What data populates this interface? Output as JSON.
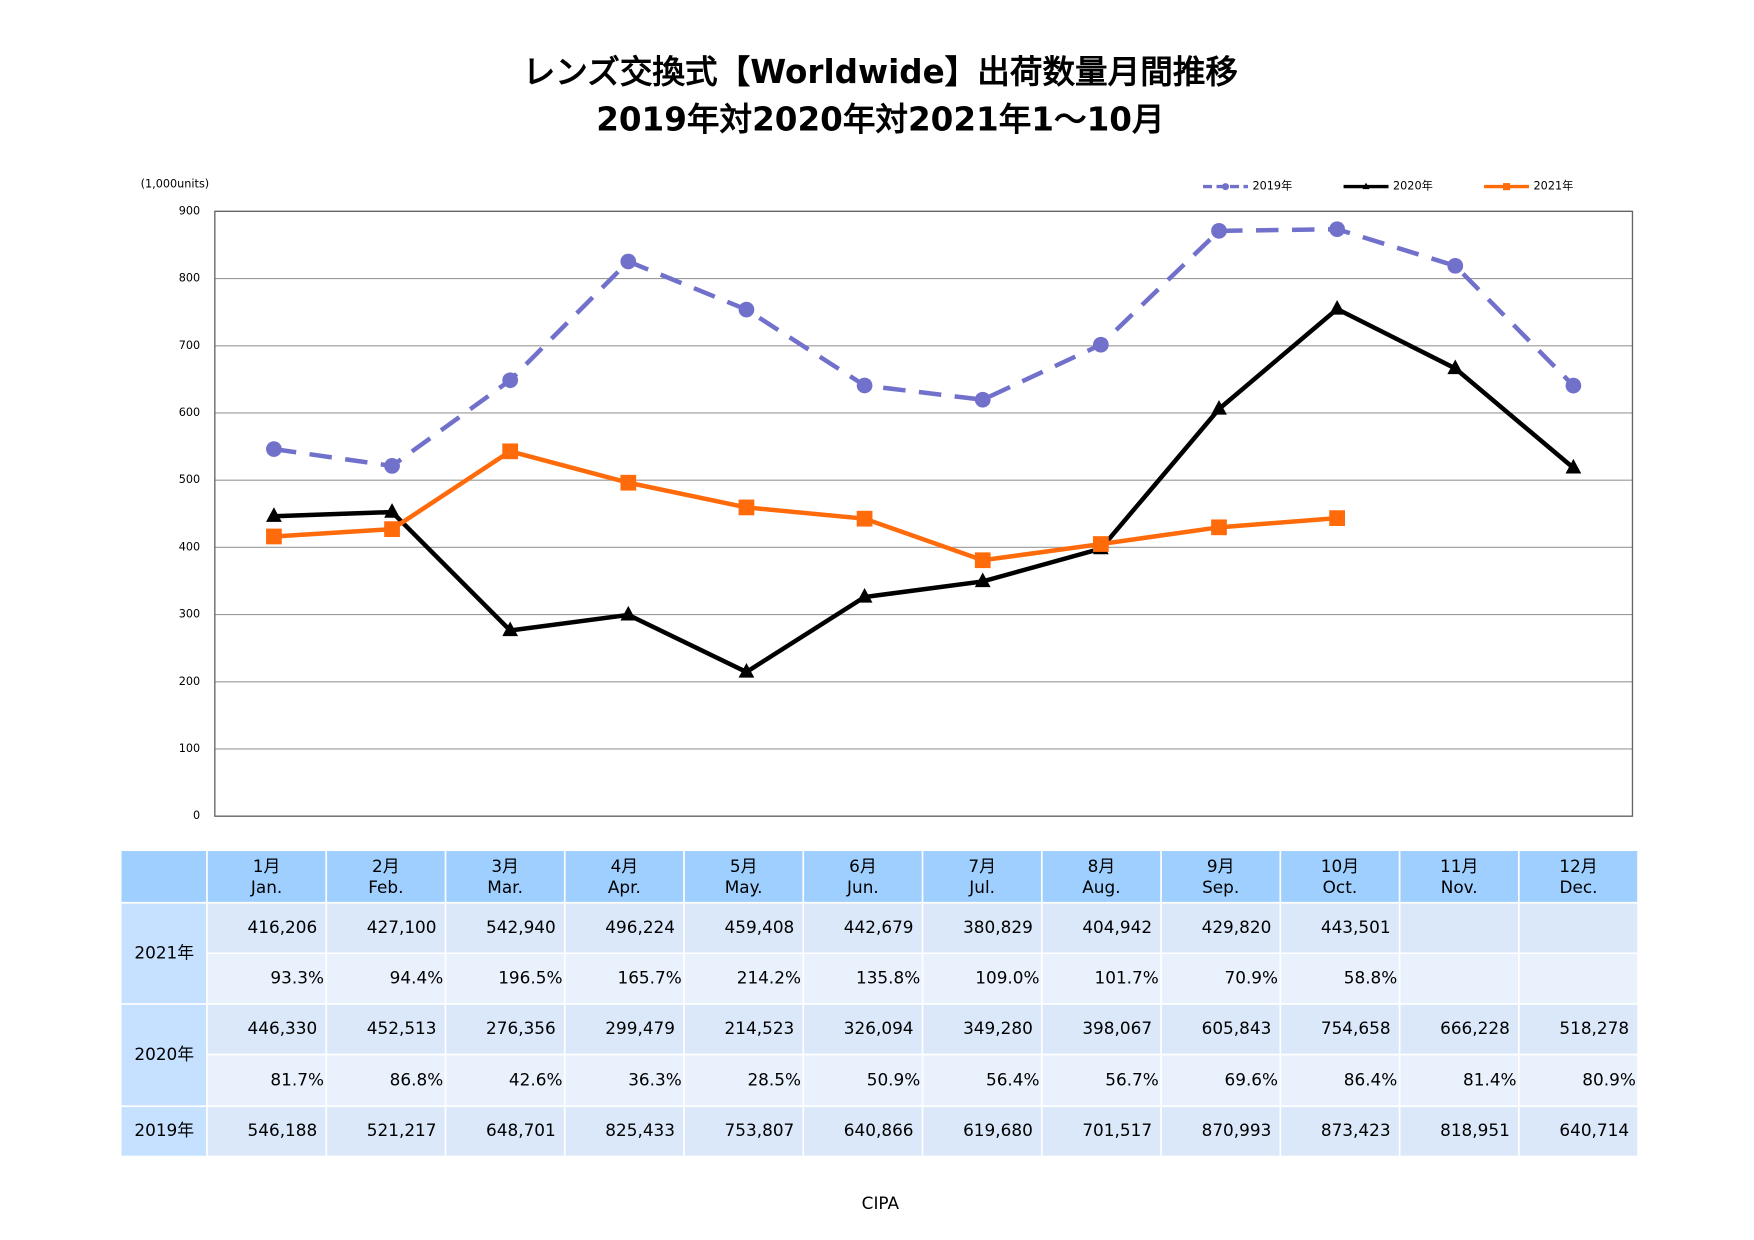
{
  "chart_data": {
    "type": "line",
    "title": "レンズ交換式【Worldwide】出荷数量月間推移",
    "subtitle": "2019年対2020年対2021年1～10月",
    "y_label": "(1,000units)",
    "source": "CIPA",
    "categories": [
      "1月",
      "2月",
      "3月",
      "4月",
      "5月",
      "6月",
      "7月",
      "8月",
      "9月",
      "10月",
      "11月",
      "12月"
    ],
    "categories_en": [
      "Jan.",
      "Feb.",
      "Mar.",
      "Apr.",
      "May.",
      "Jun.",
      "Jul.",
      "Aug.",
      "Sep.",
      "Oct.",
      "Nov.",
      "Dec."
    ],
    "ylim": [
      0,
      900
    ],
    "yticks": [
      0,
      100,
      200,
      300,
      400,
      500,
      600,
      700,
      800,
      900
    ],
    "grid": true,
    "legend": "top-right",
    "series": [
      {
        "name": "2019年",
        "color": "#7171cc",
        "dash": true,
        "marker": "circle",
        "values": [
          546.188,
          521.217,
          648.701,
          825.433,
          753.807,
          640.866,
          619.68,
          701.517,
          870.993,
          873.423,
          818.951,
          640.714
        ],
        "value_labels": [
          "546,188",
          "521,217",
          "648,701",
          "825,433",
          "753,807",
          "640,866",
          "619,680",
          "701,517",
          "870,993",
          "873,423",
          "818,951",
          "640,714"
        ]
      },
      {
        "name": "2020年",
        "color": "#000000",
        "dash": false,
        "marker": "triangle",
        "values": [
          446.33,
          452.513,
          276.356,
          299.479,
          214.523,
          326.094,
          349.28,
          398.067,
          605.843,
          754.658,
          666.228,
          518.278
        ],
        "value_labels": [
          "446,330",
          "452,513",
          "276,356",
          "299,479",
          "214,523",
          "326,094",
          "349,280",
          "398,067",
          "605,843",
          "754,658",
          "666,228",
          "518,278"
        ],
        "ratio_labels": [
          "81.7%",
          "86.8%",
          "42.6%",
          "36.3%",
          "28.5%",
          "50.9%",
          "56.4%",
          "56.7%",
          "69.6%",
          "86.4%",
          "81.4%",
          "80.9%"
        ]
      },
      {
        "name": "2021年",
        "color": "#ff6a0a",
        "dash": false,
        "marker": "square",
        "values": [
          416.206,
          427.1,
          542.94,
          496.224,
          459.408,
          442.679,
          380.829,
          404.942,
          429.82,
          443.501,
          null,
          null
        ],
        "value_labels": [
          "416,206",
          "427,100",
          "542,940",
          "496,224",
          "459,408",
          "442,679",
          "380,829",
          "404,942",
          "429,820",
          "443,501",
          null,
          null
        ],
        "ratio_labels": [
          "93.3%",
          "94.4%",
          "196.5%",
          "165.7%",
          "214.2%",
          "135.8%",
          "109.0%",
          "101.7%",
          "70.9%",
          "58.8%",
          null,
          null
        ]
      }
    ]
  }
}
